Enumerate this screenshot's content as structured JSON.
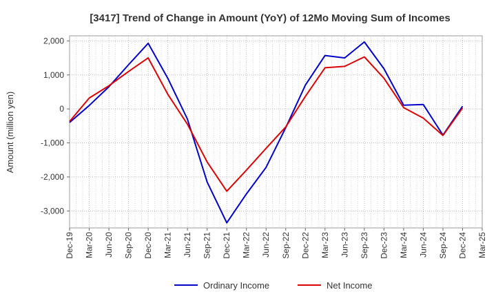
{
  "chart_data": {
    "type": "line",
    "title": "[3417]  Trend of Change in Amount (YoY) of 12Mo Moving Sum of Incomes",
    "xlabel": "",
    "ylabel": "Amount (million yen)",
    "categories": [
      "Dec-19",
      "Mar-20",
      "Jun-20",
      "Sep-20",
      "Dec-20",
      "Mar-21",
      "Jun-21",
      "Sep-21",
      "Dec-21",
      "Mar-22",
      "Jun-22",
      "Sep-22",
      "Dec-22",
      "Mar-23",
      "Jun-23",
      "Sep-23",
      "Dec-23",
      "Mar-24",
      "Jun-24",
      "Sep-24",
      "Dec-24",
      "Mar-25"
    ],
    "yticks": [
      "2,000",
      "1,000",
      "0",
      "-1,000",
      "-2,000",
      "-3,000"
    ],
    "ytick_values": [
      2000,
      1000,
      0,
      -1000,
      -2000,
      -3000
    ],
    "ylim": [
      -3500,
      2150
    ],
    "grid": true,
    "legend_position": "bottom",
    "series": [
      {
        "name": "Ordinary Income",
        "color": "#0000cc",
        "values": [
          -400,
          100,
          650,
          1300,
          1930,
          900,
          -300,
          -2150,
          -3350,
          -2500,
          -1720,
          -550,
          700,
          1570,
          1500,
          1970,
          1180,
          110,
          130,
          -770,
          80,
          null
        ]
      },
      {
        "name": "Net Income",
        "color": "#dd0000",
        "values": [
          -370,
          320,
          680,
          1100,
          1500,
          430,
          -450,
          -1560,
          -2420,
          -1800,
          -1160,
          -530,
          370,
          1210,
          1250,
          1530,
          900,
          40,
          -270,
          -780,
          30,
          null
        ]
      }
    ]
  }
}
